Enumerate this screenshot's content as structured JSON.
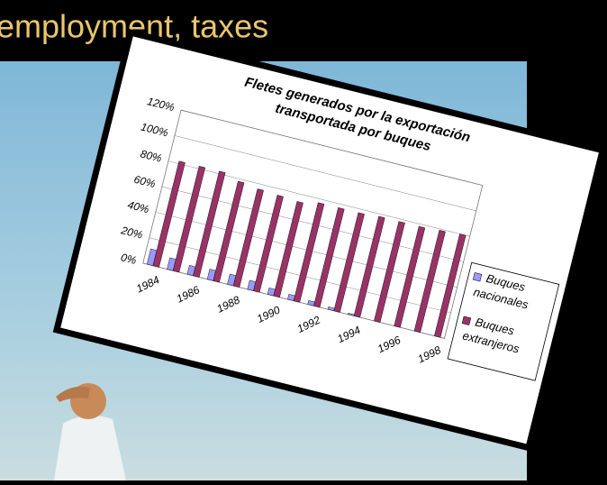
{
  "slide_title": "employment, taxes",
  "chart_data": {
    "type": "bar",
    "title": [
      "Fletes generados por la exportación",
      "transportada por buques"
    ],
    "categories": [
      "1984",
      null,
      "1986",
      null,
      "1988",
      null,
      "1990",
      null,
      "1992",
      null,
      "1994",
      null,
      "1996",
      null,
      "1998"
    ],
    "series": [
      {
        "name": "Buques nacionales",
        "color": "#9999ff",
        "values": [
          12,
          9,
          7,
          8,
          8,
          7,
          5,
          4,
          3,
          2,
          1,
          0,
          0,
          0,
          0
        ]
      },
      {
        "name": "Buques extranjeros",
        "color": "#993366",
        "values": [
          82,
          82,
          82,
          78,
          76,
          75,
          74,
          77,
          77,
          77,
          78,
          78,
          78,
          79,
          80
        ]
      }
    ],
    "ylim": [
      0,
      120
    ],
    "yticks": [
      {
        "value": 0,
        "label": "0%"
      },
      {
        "value": 20,
        "label": "20%"
      },
      {
        "value": 40,
        "label": "40%"
      },
      {
        "value": 60,
        "label": "60%"
      },
      {
        "value": 80,
        "label": "80%"
      },
      {
        "value": 100,
        "label": "100%"
      },
      {
        "value": 120,
        "label": "120%"
      }
    ],
    "grid": true,
    "legend": "right"
  }
}
